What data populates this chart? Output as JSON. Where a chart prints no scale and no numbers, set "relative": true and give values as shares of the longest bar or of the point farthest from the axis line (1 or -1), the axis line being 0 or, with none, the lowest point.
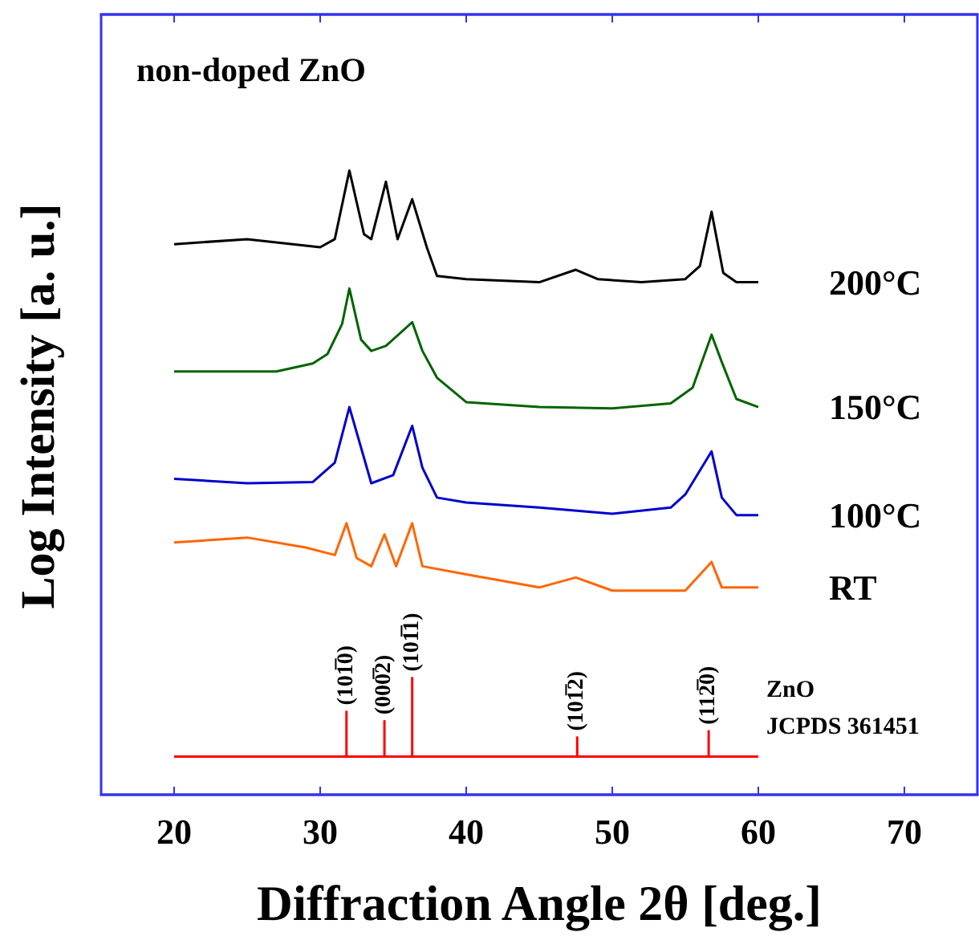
{
  "chart_data": {
    "type": "line",
    "title": "non-doped ZnO",
    "xlabel": "Diffraction Angle 2θ [deg.]",
    "ylabel": "Log Intensity [a. u.]",
    "relative": true,
    "tick_labels": "x",
    "grid": false,
    "legend": false,
    "marker": "none",
    "line_style": "solid",
    "xlim": [
      15,
      75
    ],
    "xticks": [
      20,
      30,
      40,
      50,
      60,
      70
    ],
    "x": [
      20,
      25,
      30,
      31,
      32,
      33,
      33.5,
      34.5,
      35.3,
      36.3,
      37.3,
      38,
      40,
      45,
      47.5,
      49,
      52,
      55,
      56,
      56.8,
      57.6,
      58.5,
      60
    ],
    "series": [
      {
        "name": "200°C",
        "color": "#000000",
        "values": [
          0.882,
          0.89,
          0.877,
          0.89,
          1,
          0.898,
          0.89,
          0.982,
          0.89,
          0.954,
          0.877,
          0.831,
          0.826,
          0.821,
          0.841,
          0.826,
          0.821,
          0.826,
          0.847,
          0.934,
          0.836,
          0.821,
          0.821
        ]
      },
      {
        "name": "150°C",
        "color": "#006400",
        "x": [
          20,
          27,
          29.5,
          30.5,
          31.5,
          32,
          32.8,
          33.5,
          34.5,
          36.3,
          37,
          38,
          40,
          45,
          50,
          54,
          55.5,
          56.8,
          57.5,
          58.5,
          60
        ],
        "values": [
          0.678,
          0.678,
          0.691,
          0.706,
          0.754,
          0.811,
          0.729,
          0.711,
          0.719,
          0.757,
          0.711,
          0.668,
          0.629,
          0.621,
          0.619,
          0.627,
          0.652,
          0.737,
          0.693,
          0.634,
          0.621
        ]
      },
      {
        "name": "100°C",
        "color": "#0000cc",
        "x": [
          20,
          25,
          29.5,
          31,
          32,
          33.5,
          35,
          36.3,
          37,
          38,
          40,
          45,
          50,
          54,
          55,
          56.8,
          57.5,
          58.5,
          60
        ],
        "values": [
          0.506,
          0.499,
          0.501,
          0.532,
          0.621,
          0.499,
          0.512,
          0.591,
          0.524,
          0.476,
          0.468,
          0.46,
          0.45,
          0.46,
          0.481,
          0.55,
          0.476,
          0.448,
          0.448
        ]
      },
      {
        "name": "RT",
        "color": "#ff6600",
        "x": [
          20,
          25,
          29,
          31,
          31.8,
          32.5,
          33.5,
          34.4,
          35.2,
          36.3,
          37,
          40,
          45,
          47.5,
          50,
          55,
          56.8,
          57.5,
          60
        ],
        "values": [
          0.404,
          0.412,
          0.396,
          0.384,
          0.435,
          0.379,
          0.366,
          0.417,
          0.366,
          0.435,
          0.366,
          0.353,
          0.332,
          0.348,
          0.327,
          0.327,
          0.373,
          0.332,
          0.332
        ]
      },
      {
        "name": "ZnO\nJCPDS 361451",
        "color": "#ff0000",
        "x": [
          20,
          31.8,
          31.8,
          31.8,
          34.4,
          34.4,
          34.4,
          36.3,
          36.3,
          36.3,
          47.6,
          47.6,
          47.6,
          56.6,
          56.6,
          56.6,
          60
        ],
        "values": [
          0.061,
          0.061,
          0.133,
          0.061,
          0.061,
          0.118,
          0.061,
          0.061,
          0.187,
          0.061,
          0.061,
          0.092,
          0.061,
          0.061,
          0.102,
          0.061,
          0.061
        ]
      }
    ],
    "annotations": [
      {
        "text": "(101̅0)",
        "x": 31.8,
        "y": 0.133
      },
      {
        "text": "(000̅2)",
        "x": 34.4,
        "y": 0.118
      },
      {
        "text": "(101̅1)",
        "x": 36.3,
        "y": 0.187
      },
      {
        "text": "(101̅2)",
        "x": 47.6,
        "y": 0.092
      },
      {
        "text": "(112̅0)",
        "x": 56.6,
        "y": 0.102
      }
    ]
  }
}
